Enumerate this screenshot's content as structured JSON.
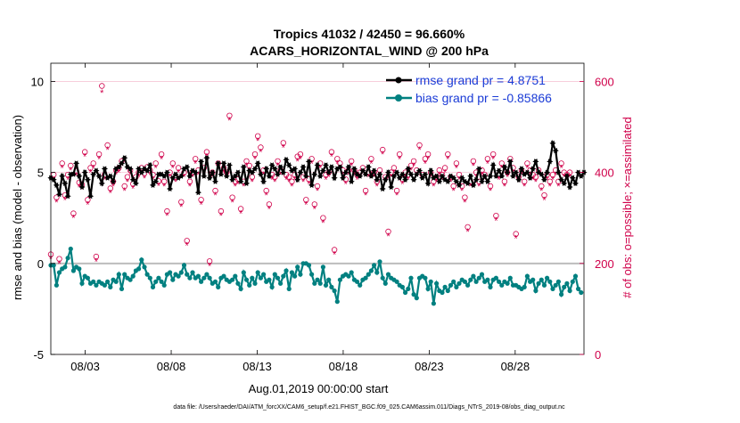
{
  "chart_data": {
    "type": "line",
    "title": "Tropics 41032 / 42450 = 96.660%",
    "subtitle": "ACARS_HORIZONTAL_WIND @ 200 hPa",
    "xlabel": "Aug.01,2019 00:00:00 start",
    "ylabel": "rmse and bias (model - observation)",
    "ylabel_right": "# of obs: o=possible; ×=assimilated",
    "footer": "data file: /Users/raeder/DAI/ATM_forcXX/CAM6_setup/f.e21.FHIST_BGC.f09_025.CAM6assim.011/Diags_NTrS_2019-08/obs_diag_output.nc",
    "x_range_days": [
      1,
      32
    ],
    "ylim": [
      -5,
      11
    ],
    "ylim_right": [
      0,
      640
    ],
    "x_ticks": [
      {
        "day": 3,
        "label": "08/03"
      },
      {
        "day": 8,
        "label": "08/08"
      },
      {
        "day": 13,
        "label": "08/13"
      },
      {
        "day": 18,
        "label": "08/18"
      },
      {
        "day": 23,
        "label": "08/23"
      },
      {
        "day": 28,
        "label": "08/28"
      }
    ],
    "y_ticks": [
      {
        "v": -5,
        "label": "-5"
      },
      {
        "v": 0,
        "label": "0"
      },
      {
        "v": 5,
        "label": "5"
      },
      {
        "v": 10,
        "label": "10"
      }
    ],
    "y_ticks_right": [
      {
        "v": 0,
        "label": "0"
      },
      {
        "v": 200,
        "label": "200"
      },
      {
        "v": 400,
        "label": "400"
      },
      {
        "v": 600,
        "label": "600"
      }
    ],
    "series": [
      {
        "name": "rmse grand pr = 4.8751",
        "color": "#000000",
        "marker": "star",
        "values": [
          4.7,
          4.6,
          4.3,
          3.8,
          4.8,
          4.4,
          3.7,
          4.9,
          4.9,
          5.5,
          4.8,
          4.2,
          5.0,
          4.6,
          3.7,
          4.9,
          5.1,
          4.8,
          4.4,
          5.2,
          4.7,
          4.8,
          4.5,
          5.2,
          5.3,
          5.5,
          5.8,
          5.3,
          5.2,
          4.6,
          4.4,
          5.2,
          5.0,
          5.2,
          5.1,
          5.4,
          4.3,
          4.5,
          4.9,
          4.9,
          4.8,
          5.0,
          4.1,
          4.7,
          4.9,
          4.7,
          4.8,
          5.2,
          5.3,
          4.8,
          5.1,
          5.0,
          3.9,
          5.6,
          4.8,
          5.8,
          4.7,
          5.0,
          4.5,
          5.5,
          4.9,
          5.5,
          4.8,
          5.4,
          4.6,
          4.8,
          5.0,
          4.5,
          5.3,
          4.4,
          5.1,
          5.0,
          5.2,
          5.5,
          4.9,
          4.5,
          5.2,
          4.8,
          5.4,
          5.2,
          4.9,
          5.3,
          5.0,
          5.7,
          5.4,
          5.1,
          5.2,
          4.6,
          5.0,
          5.3,
          4.8,
          5.6,
          4.3,
          4.9,
          5.4,
          4.8,
          5.1,
          5.4,
          5.0,
          5.3,
          4.7,
          5.2,
          5.3,
          4.7,
          5.0,
          5.3,
          4.5,
          5.2,
          4.9,
          4.8,
          5.1,
          4.9,
          5.3,
          4.8,
          5.1,
          4.6,
          4.9,
          4.1,
          4.6,
          5.0,
          4.2,
          4.8,
          5.0,
          4.7,
          4.9,
          4.6,
          5.2,
          4.9,
          4.6,
          4.9,
          5.1,
          4.7,
          4.9,
          4.4,
          5.1,
          4.7,
          4.8,
          4.5,
          4.8,
          4.6,
          4.5,
          4.8,
          4.7,
          4.5,
          4.3,
          4.7,
          4.5,
          4.4,
          4.8,
          4.3,
          4.6,
          5.2,
          4.5,
          4.8,
          4.5,
          4.8,
          5.4,
          4.8,
          5.1,
          4.8,
          5.3,
          5.0,
          5.6,
          4.8,
          5.0,
          4.6,
          5.2,
          4.9,
          5.0,
          4.7,
          5.2,
          5.6,
          5.0,
          4.9,
          4.6,
          5.0,
          5.6,
          6.6,
          6.2,
          5.0,
          4.6,
          4.4,
          4.8,
          4.2,
          4.7,
          4.4,
          5.0,
          4.8,
          5.0
        ]
      },
      {
        "name": "bias grand pr = -0.85866",
        "color": "#008080",
        "marker": "circle",
        "values": [
          -0.1,
          -0.1,
          -1.2,
          -0.5,
          -0.3,
          -0.2,
          0.3,
          0.8,
          -0.4,
          -0.2,
          -0.3,
          -1.1,
          -0.7,
          -0.8,
          -1.1,
          -1.0,
          -1.2,
          -1.0,
          -1.1,
          -1.2,
          -1.0,
          -1.3,
          -0.9,
          -1.0,
          -0.6,
          -1.4,
          -0.6,
          -0.8,
          -0.9,
          -0.7,
          -0.4,
          -0.3,
          0.2,
          -0.2,
          -0.6,
          -0.8,
          -1.3,
          -1.0,
          -0.8,
          -1.0,
          -1.2,
          -0.6,
          -0.5,
          -0.9,
          -0.6,
          -0.7,
          -0.5,
          -0.1,
          -0.6,
          -0.8,
          -0.5,
          -0.8,
          -0.7,
          -1.0,
          -0.8,
          -0.6,
          -0.8,
          -1.1,
          -1.0,
          -1.3,
          -0.8,
          -0.7,
          -0.9,
          -1.0,
          -0.9,
          -0.7,
          -1.1,
          -1.4,
          -0.5,
          -0.9,
          -1.2,
          -0.8,
          -1.1,
          -0.5,
          -0.8,
          -0.6,
          -1.0,
          -0.9,
          -1.3,
          -0.6,
          -0.8,
          -1.1,
          -0.7,
          -0.4,
          -1.4,
          -0.5,
          -0.7,
          -0.2,
          -0.6,
          0.0,
          0.0,
          -0.1,
          -0.6,
          -1.1,
          -0.9,
          -1.1,
          -0.2,
          -1.2,
          -0.9,
          -1.3,
          -1.5,
          -2.1,
          -0.9,
          -0.7,
          -0.6,
          -0.7,
          -0.5,
          -0.9,
          -1.0,
          -1.2,
          -0.9,
          -0.8,
          -0.6,
          -0.4,
          -0.1,
          -0.5,
          0.1,
          -0.8,
          -1.1,
          -0.6,
          -0.8,
          -0.9,
          -1.0,
          -1.2,
          -1.3,
          -1.6,
          -1.4,
          -0.8,
          -1.7,
          -1.9,
          -0.8,
          -0.7,
          -0.8,
          -1.4,
          -1.0,
          -2.2,
          -1.1,
          -1.5,
          -1.6,
          -1.3,
          -1.5,
          -1.2,
          -1.0,
          -1.3,
          -1.1,
          -0.9,
          -1.0,
          -1.2,
          -0.9,
          -0.7,
          -1.0,
          -0.8,
          -0.6,
          -1.0,
          -0.9,
          -1.3,
          -0.9,
          -0.8,
          -1.0,
          -1.2,
          -1.0,
          -1.1,
          -0.8,
          -1.2,
          -1.2,
          -1.3,
          -1.4,
          -1.3,
          -0.7,
          -1.0,
          -0.9,
          -1.5,
          -1.1,
          -0.9,
          -1.2,
          -0.8,
          -1.0,
          -1.4,
          -1.2,
          -1.0,
          -1.7,
          -1.3,
          -1.1,
          -1.5,
          -1.0,
          -0.7,
          -1.4,
          -1.6
        ]
      },
      {
        "name": "obs possible",
        "color": "#d0004a",
        "marker": "o",
        "values": [
          220,
          395,
          345,
          210,
          420,
          350,
          395,
          415,
          310,
          403,
          378,
          373,
          445,
          340,
          410,
          420,
          215,
          440,
          590,
          395,
          460,
          365,
          380,
          405,
          410,
          425,
          370,
          390,
          405,
          375,
          390,
          400,
          410,
          398,
          412,
          405,
          395,
          420,
          381,
          440,
          380,
          315,
          400,
          420,
          390,
          410,
          335,
          400,
          250,
          380,
          400,
          430,
          405,
          340,
          410,
          445,
          205,
          400,
          360,
          420,
          315,
          410,
          400,
          525,
          345,
          380,
          385,
          320,
          380,
          425,
          415,
          390,
          440,
          480,
          455,
          405,
          360,
          330,
          395,
          390,
          425,
          405,
          465,
          395,
          390,
          380,
          395,
          435,
          440,
          390,
          340,
          385,
          430,
          330,
          370,
          420,
          300,
          395,
          400,
          445,
          230,
          430,
          420,
          405,
          385,
          405,
          425,
          405,
          395,
          400,
          410,
          360,
          400,
          430,
          400,
          380,
          405,
          450,
          390,
          270,
          400,
          410,
          360,
          440,
          385,
          400,
          395,
          415,
          425,
          405,
          460,
          395,
          430,
          440,
          400,
          380,
          390,
          405,
          395,
          410,
          440,
          390,
          370,
          420,
          395,
          370,
          345,
          280,
          380,
          425,
          400,
          380,
          405,
          395,
          430,
          370,
          440,
          305,
          395,
          420,
          380,
          400,
          430,
          410,
          265,
          390,
          405,
          380,
          420,
          405,
          395,
          390,
          405,
          370,
          350,
          395,
          380,
          395,
          405,
          380,
          420,
          400,
          395,
          400
        ]
      },
      {
        "name": "obs assimilated",
        "color": "#d0004a",
        "marker": "x",
        "values": [
          210,
          385,
          335,
          200,
          410,
          340,
          385,
          405,
          300,
          393,
          368,
          363,
          435,
          330,
          400,
          410,
          205,
          430,
          575,
          385,
          450,
          355,
          370,
          395,
          400,
          415,
          360,
          380,
          395,
          365,
          380,
          390,
          400,
          388,
          402,
          395,
          385,
          410,
          371,
          430,
          370,
          305,
          390,
          410,
          380,
          400,
          325,
          390,
          240,
          370,
          390,
          420,
          395,
          330,
          400,
          435,
          195,
          390,
          350,
          410,
          305,
          400,
          390,
          515,
          335,
          370,
          375,
          310,
          370,
          415,
          405,
          380,
          430,
          470,
          445,
          395,
          350,
          320,
          385,
          380,
          415,
          395,
          455,
          385,
          380,
          370,
          385,
          425,
          430,
          380,
          330,
          375,
          420,
          320,
          360,
          410,
          290,
          385,
          390,
          435,
          220,
          420,
          410,
          395,
          375,
          395,
          415,
          395,
          385,
          390,
          400,
          350,
          390,
          420,
          390,
          370,
          395,
          440,
          380,
          260,
          390,
          400,
          350,
          430,
          375,
          390,
          385,
          405,
          415,
          395,
          450,
          385,
          420,
          430,
          390,
          370,
          380,
          395,
          385,
          400,
          430,
          380,
          360,
          410,
          385,
          360,
          335,
          270,
          370,
          415,
          390,
          370,
          395,
          385,
          420,
          360,
          430,
          295,
          385,
          410,
          370,
          390,
          420,
          400,
          255,
          380,
          395,
          370,
          410,
          395,
          385,
          380,
          395,
          360,
          340,
          385,
          370,
          385,
          395,
          370,
          410,
          390,
          385,
          390
        ]
      }
    ]
  }
}
